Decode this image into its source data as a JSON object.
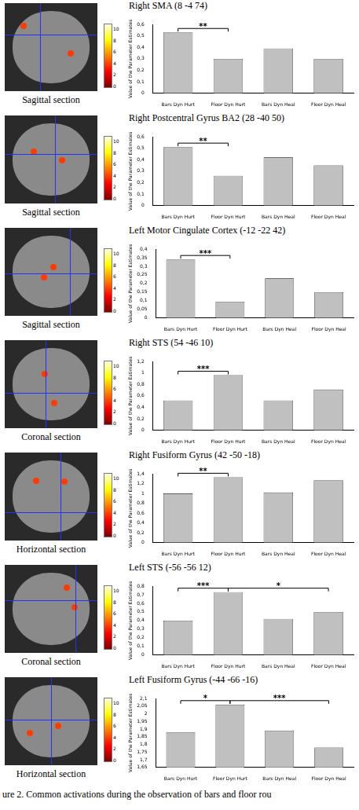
{
  "chart_data": [
    {
      "type": "bar",
      "title": "Right SMA (8 -4 74)",
      "y_label": "Value of the Parameter Estimates",
      "categories": [
        "Bars Dyn Hurt",
        "Floor Dyn Hurt",
        "Bars Dyn Heal",
        "Floor Dyn Heal"
      ],
      "values": [
        0.53,
        0.3,
        0.39,
        0.3
      ],
      "color": "#c0c0c0",
      "grid": false,
      "ylim": [
        0,
        0.6
      ],
      "yticks": [
        0,
        {
          "value": 0.1,
          "label": "0,1"
        },
        {
          "value": 0.2,
          "label": "0,2"
        },
        {
          "value": 0.3,
          "label": "0,3"
        },
        {
          "value": 0.4,
          "label": "0,4"
        },
        {
          "value": 0.5,
          "label": "0,5"
        },
        {
          "value": 0.6,
          "label": "0,6"
        }
      ],
      "significance": [
        {
          "from": "Bars Dyn Hurt",
          "to": "Floor Dyn Hurt",
          "label": "**"
        }
      ]
    },
    {
      "type": "bar",
      "title": "Right Postcentral Gyrus BA2 (28 -40 50)",
      "y_label": "Value of the Parameter Estimates",
      "categories": [
        "Bars Dyn Hurt",
        "Floor Dyn Hurt",
        "Bars Dyn Heal",
        "Floor Dyn Heal"
      ],
      "values": [
        0.51,
        0.26,
        0.42,
        0.35
      ],
      "color": "#c0c0c0",
      "grid": false,
      "ylim": [
        0,
        0.6
      ],
      "yticks": [
        0,
        {
          "value": 0.1,
          "label": "0,1"
        },
        {
          "value": 0.2,
          "label": "0,2"
        },
        {
          "value": 0.3,
          "label": "0,3"
        },
        {
          "value": 0.4,
          "label": "0,4"
        },
        {
          "value": 0.5,
          "label": "0,5"
        },
        {
          "value": 0.6,
          "label": "0,6"
        }
      ],
      "significance": [
        {
          "from": "Bars Dyn Hurt",
          "to": "Floor Dyn Hurt",
          "label": "**"
        }
      ]
    },
    {
      "type": "bar",
      "title": "Left Motor Cingulate Cortex (-12 -22 42)",
      "y_label": "Value of the Parameter Estimates",
      "categories": [
        "Bars Dyn Hurt",
        "Floor Dyn Hurt",
        "Bars Dyn Heal",
        "Floor Dyn Heal"
      ],
      "values": [
        0.34,
        0.095,
        0.23,
        0.15
      ],
      "color": "#c0c0c0",
      "grid": false,
      "ylim": [
        0,
        0.4
      ],
      "yticks": [
        0,
        {
          "value": 0.05,
          "label": "0,05"
        },
        {
          "value": 0.1,
          "label": "0,1"
        },
        {
          "value": 0.15,
          "label": "0,15"
        },
        {
          "value": 0.2,
          "label": "0,2"
        },
        {
          "value": 0.25,
          "label": "0,25"
        },
        {
          "value": 0.3,
          "label": "0,3"
        },
        {
          "value": 0.35,
          "label": "0,35"
        },
        {
          "value": 0.4,
          "label": "0,4"
        }
      ],
      "significance": [
        {
          "from": "Bars Dyn Hurt",
          "to": "Floor Dyn Hurt",
          "label": "***"
        }
      ]
    },
    {
      "type": "bar",
      "title": "Right STS (54 -46 10)",
      "y_label": "Value of the Parameter Estimates",
      "categories": [
        "Bars Dyn Hurt",
        "Floor Dyn Hurt",
        "Bars Dyn Heal",
        "Floor Dyn Heal"
      ],
      "values": [
        0.52,
        0.96,
        0.52,
        0.71
      ],
      "color": "#c0c0c0",
      "grid": false,
      "ylim": [
        0,
        1.2
      ],
      "yticks": [
        0,
        {
          "value": 0.2,
          "label": "0,2"
        },
        {
          "value": 0.4,
          "label": "0,4"
        },
        {
          "value": 0.6,
          "label": "0,6"
        },
        {
          "value": 0.8,
          "label": "0,8"
        },
        1,
        {
          "value": 1.2,
          "label": "1,2"
        }
      ],
      "significance": [
        {
          "from": "Bars Dyn Hurt",
          "to": "Floor Dyn Hurt",
          "label": "***"
        }
      ]
    },
    {
      "type": "bar",
      "title": "Right Fusiform Gyrus (42 -50 -18)",
      "y_label": "Value of the Parameter Estimates",
      "categories": [
        "Bars Dyn Hurt",
        "Floor Dyn Hurt",
        "Bars Dyn Heal",
        "Floor Dyn Heal"
      ],
      "values": [
        1.0,
        1.33,
        1.02,
        1.27
      ],
      "color": "#c0c0c0",
      "grid": false,
      "ylim": [
        0,
        1.4
      ],
      "yticks": [
        0,
        {
          "value": 0.2,
          "label": "0,2"
        },
        {
          "value": 0.4,
          "label": "0,4"
        },
        {
          "value": 0.6,
          "label": "0,6"
        },
        {
          "value": 0.8,
          "label": "0,8"
        },
        1,
        {
          "value": 1.2,
          "label": "1,2"
        },
        {
          "value": 1.4,
          "label": "1,4"
        }
      ],
      "significance": [
        {
          "from": "Bars Dyn Hurt",
          "to": "Floor Dyn Hurt",
          "label": "**"
        }
      ]
    },
    {
      "type": "bar",
      "title": "Left STS (-56 -56 12)",
      "y_label": "Value of the Parameter Estimates",
      "categories": [
        "Bars Dyn Hurt",
        "Floor Dyn Hurt",
        "Bars Dyn Heal",
        "Floor Dyn Heal"
      ],
      "values": [
        0.4,
        0.73,
        0.42,
        0.5
      ],
      "color": "#c0c0c0",
      "grid": false,
      "ylim": [
        0,
        0.8
      ],
      "yticks": [
        0,
        {
          "value": 0.1,
          "label": "0,1"
        },
        {
          "value": 0.2,
          "label": "0,2"
        },
        {
          "value": 0.3,
          "label": "0,3"
        },
        {
          "value": 0.4,
          "label": "0,4"
        },
        {
          "value": 0.5,
          "label": "0,5"
        },
        {
          "value": 0.6,
          "label": "0,6"
        },
        {
          "value": 0.7,
          "label": "0,7"
        },
        {
          "value": 0.8,
          "label": "0,8"
        }
      ],
      "significance": [
        {
          "from": "Bars Dyn Hurt",
          "to": "Floor Dyn Hurt",
          "label": "***"
        },
        {
          "from": "Floor Dyn Hurt",
          "to": "Floor Dyn Heal",
          "label": "*"
        }
      ]
    },
    {
      "type": "bar",
      "title": "Left Fusiform Gyrus (-44 -66 -16)",
      "y_label": "Value of the Parameter Estimates",
      "categories": [
        "Bars Dyn Hurt",
        "Floor Dyn Hurt",
        "Bars Dyn Heal",
        "Floor Dyn Heal"
      ],
      "values": [
        1.88,
        2.06,
        1.89,
        1.78
      ],
      "color": "#c0c0c0",
      "grid": false,
      "ylim": [
        1.65,
        2.1
      ],
      "yticks": [
        {
          "value": 1.65,
          "label": "1,65"
        },
        {
          "value": 1.7,
          "label": "1,7"
        },
        {
          "value": 1.75,
          "label": "1,75"
        },
        {
          "value": 1.8,
          "label": "1,8"
        },
        {
          "value": 1.85,
          "label": "1,85"
        },
        {
          "value": 1.9,
          "label": "1,9"
        },
        {
          "value": 1.95,
          "label": "1,95"
        },
        2,
        {
          "value": 2.05,
          "label": "2,05"
        },
        {
          "value": 2.1,
          "label": "2,1"
        }
      ],
      "significance": [
        {
          "from": "Bars Dyn Hurt",
          "to": "Floor Dyn Hurt",
          "label": "*"
        },
        {
          "from": "Floor Dyn Hurt",
          "to": "Floor Dyn Heal",
          "label": "***"
        }
      ]
    }
  ],
  "images": [
    {
      "label": "Sagittal section",
      "colorbar": {
        "range": [
          0,
          11
        ],
        "ticks": [
          0,
          2,
          4,
          6,
          8,
          10
        ]
      }
    },
    {
      "label": "Sagittal section",
      "colorbar": {
        "range": [
          0,
          11
        ],
        "ticks": [
          0,
          2,
          4,
          6,
          8,
          10
        ]
      }
    },
    {
      "label": "Sagittal section",
      "colorbar": {
        "range": [
          0,
          11
        ],
        "ticks": [
          0,
          2,
          4,
          6,
          8,
          10
        ]
      }
    },
    {
      "label": "Coronal section",
      "colorbar": {
        "range": [
          0,
          11
        ],
        "ticks": [
          0,
          2,
          4,
          6,
          8,
          10
        ]
      }
    },
    {
      "label": "Horizontal section",
      "colorbar": {
        "range": [
          0,
          11
        ],
        "ticks": [
          0,
          2,
          4,
          6,
          8,
          10
        ]
      }
    },
    {
      "label": "Coronal section",
      "colorbar": {
        "range": [
          0,
          11
        ],
        "ticks": [
          0,
          2,
          4,
          6,
          8,
          10
        ]
      }
    },
    {
      "label": "Horizontal section",
      "colorbar": {
        "range": [
          0,
          11
        ],
        "ticks": [
          0,
          2,
          4,
          6,
          8,
          10
        ]
      }
    }
  ],
  "caption": "ure 2. Common activations during the observation of bars and floor rou"
}
